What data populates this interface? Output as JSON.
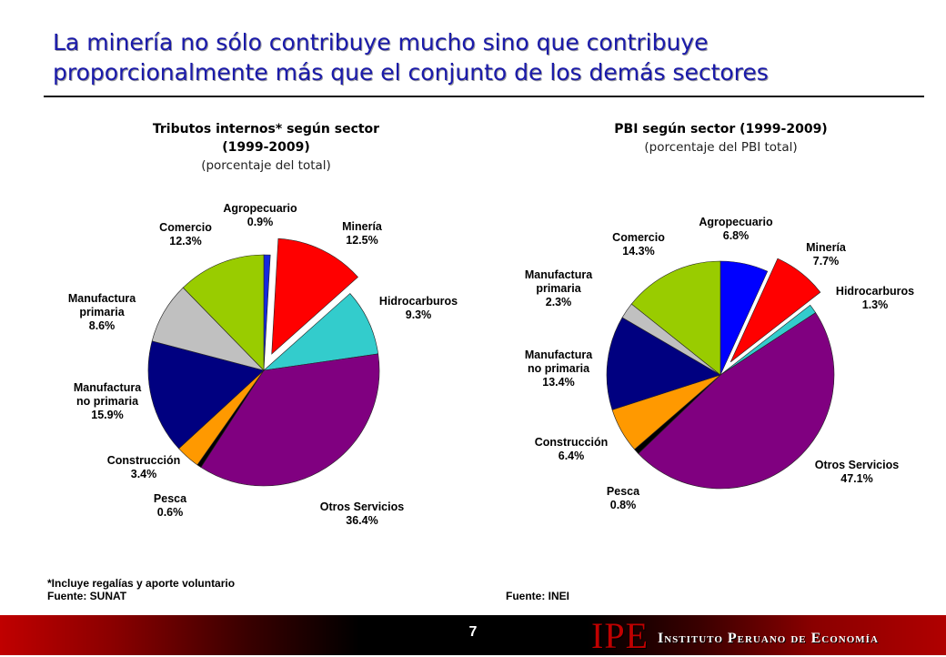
{
  "page": {
    "title_line1": "La minería no sólo contribuye mucho sino que contribuye",
    "title_line2": "proporcionalmente más que el conjunto de los demás sectores",
    "page_number": "7",
    "logo_abbr": "IPE",
    "logo_name": "Instituto Peruano de Economía",
    "colors": {
      "title": "#1a1aaa",
      "brand_red": "#c00000"
    }
  },
  "chart_data": [
    {
      "type": "pie",
      "title_line1": "Tributos internos* según sector",
      "title_line2": "(1999-2009)",
      "subtitle": "(porcentaje del total)",
      "exploded": "Minería",
      "slices": [
        {
          "label": "Agropecuario",
          "value": 0.9,
          "value_label": "0.9%",
          "color": "#1428e0"
        },
        {
          "label": "Minería",
          "value": 12.5,
          "value_label": "12.5%",
          "color": "#ff0000"
        },
        {
          "label": "Hidrocarburos",
          "value": 9.3,
          "value_label": "9.3%",
          "color": "#33cccc"
        },
        {
          "label": "Otros Servicios",
          "value": 36.4,
          "value_label": "36.4%",
          "color": "#800080"
        },
        {
          "label": "Pesca",
          "value": 0.6,
          "value_label": "0.6%",
          "color": "#000000"
        },
        {
          "label": "Construcción",
          "value": 3.4,
          "value_label": "3.4%",
          "color": "#ff9900"
        },
        {
          "label": "Manufactura no primaria",
          "value": 15.9,
          "value_label": "15.9%",
          "color": "#000080"
        },
        {
          "label": "Manufactura primaria",
          "value": 8.6,
          "value_label": "8.6%",
          "color": "#c0c0c0"
        },
        {
          "label": "Comercio",
          "value": 12.3,
          "value_label": "12.3%",
          "color": "#99cc00"
        }
      ],
      "footnote": "*Incluye regalías y aporte voluntario",
      "source": "Fuente: SUNAT"
    },
    {
      "type": "pie",
      "title_line1": "PBI según sector (1999-2009)",
      "subtitle": "(porcentaje del PBI total)",
      "exploded": "Minería",
      "slices": [
        {
          "label": "Agropecuario",
          "value": 6.8,
          "value_label": "6.8%",
          "color": "#0000ff"
        },
        {
          "label": "Minería",
          "value": 7.7,
          "value_label": "7.7%",
          "color": "#ff0000"
        },
        {
          "label": "Hidrocarburos",
          "value": 1.3,
          "value_label": "1.3%",
          "color": "#33cccc"
        },
        {
          "label": "Otros Servicios",
          "value": 47.1,
          "value_label": "47.1%",
          "color": "#800080"
        },
        {
          "label": "Pesca",
          "value": 0.8,
          "value_label": "0.8%",
          "color": "#000000"
        },
        {
          "label": "Construcción",
          "value": 6.4,
          "value_label": "6.4%",
          "color": "#ff9900"
        },
        {
          "label": "Manufactura no primaria",
          "value": 13.4,
          "value_label": "13.4%",
          "color": "#000080"
        },
        {
          "label": "Manufactura primaria",
          "value": 2.3,
          "value_label": "2.3%",
          "color": "#c0c0c0"
        },
        {
          "label": "Comercio",
          "value": 14.3,
          "value_label": "14.3%",
          "color": "#99cc00"
        }
      ],
      "source": "Fuente: INEI"
    }
  ]
}
